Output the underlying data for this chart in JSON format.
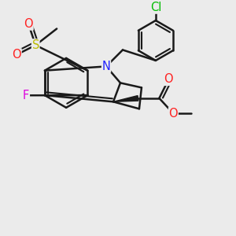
{
  "background_color": "#ebebeb",
  "bond_color": "#1a1a1a",
  "bond_width": 1.8,
  "atom_colors": {
    "N": "#2020ff",
    "O": "#ff2020",
    "F": "#dd00dd",
    "S": "#bbbb00",
    "Cl": "#00bb00",
    "C": "#1a1a1a"
  },
  "figsize": [
    3.0,
    3.0
  ],
  "dpi": 100,
  "xlim": [
    0,
    10
  ],
  "ylim": [
    0,
    10
  ]
}
